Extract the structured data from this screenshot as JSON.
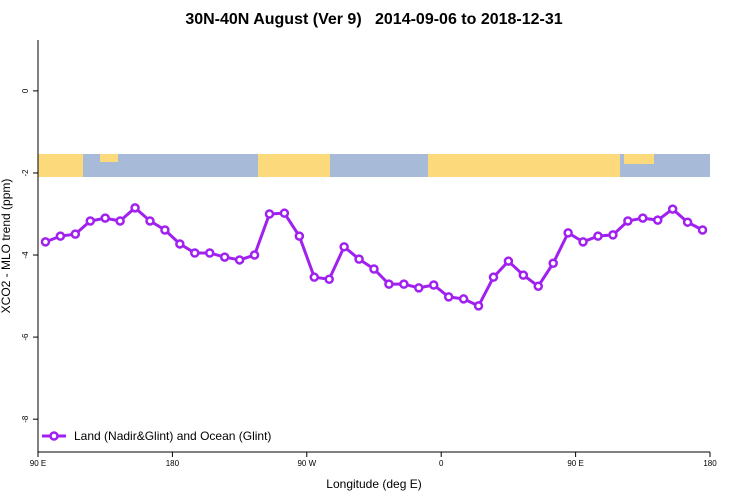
{
  "chart_data": {
    "type": "line",
    "title": "30N-40N August (Ver 9)   2014-09-06 to 2018-12-31",
    "x_label": "Longitude (deg E)",
    "y_label": "XCO2 - MLO trend (ppm)",
    "xlim": [
      90,
      540
    ],
    "xticks": [
      {
        "value": 90,
        "label": "90 E"
      },
      {
        "value": 180,
        "label": "180"
      },
      {
        "value": 270,
        "label": "90 W"
      },
      {
        "value": 360,
        "label": "0"
      },
      {
        "value": 450,
        "label": "90 E"
      },
      {
        "value": 540,
        "label": "180"
      }
    ],
    "ylim": [
      -8.8,
      1.24
    ],
    "yticks": [
      0,
      -2,
      -4,
      -6,
      -8
    ],
    "legend": "bottom-left",
    "x": [
      95,
      105,
      115,
      125,
      135,
      145,
      155,
      165,
      175,
      185,
      195,
      205,
      215,
      225,
      235,
      245,
      255,
      265,
      275,
      285,
      295,
      305,
      315,
      325,
      335,
      345,
      355,
      365,
      375,
      385,
      395,
      405,
      415,
      425,
      435,
      445,
      455,
      465,
      475,
      485,
      495,
      505,
      515,
      525,
      535
    ],
    "series": [
      {
        "name": "Land (Nadir&Glint) and Ocean (Glint)",
        "color": "#a020f0",
        "values": [
          -3.68,
          -3.54,
          -3.49,
          -3.17,
          -3.1,
          -3.17,
          -2.85,
          -3.17,
          -3.39,
          -3.73,
          -3.95,
          -3.95,
          -4.05,
          -4.12,
          -4.0,
          -3.0,
          -2.98,
          -3.54,
          -4.54,
          -4.59,
          -3.8,
          -4.1,
          -4.34,
          -4.71,
          -4.71,
          -4.8,
          -4.73,
          -5.02,
          -5.07,
          -5.24,
          -4.54,
          -4.15,
          -4.49,
          -4.76,
          -4.2,
          -3.46,
          -3.68,
          -3.54,
          -3.51,
          -3.17,
          -3.1,
          -3.15,
          -2.88,
          -3.2,
          -3.39
        ]
      }
    ]
  }
}
